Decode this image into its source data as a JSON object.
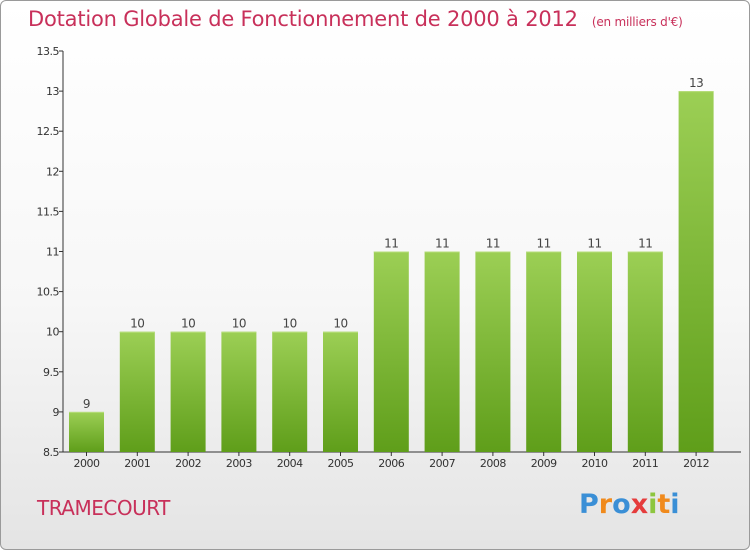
{
  "title": "Dotation Globale de Fonctionnement de 2000 à 2012",
  "subtitle": "(en milliers d'€)",
  "commune": "TRAMECOURT",
  "logo": {
    "text": "Proxiti",
    "letter_colors": [
      "#3a8fd6",
      "#f08a1c",
      "#3a8fd6",
      "#e53c3c",
      "#8dc63f",
      "#f08a1c",
      "#3a8fd6"
    ]
  },
  "colors": {
    "title": "#c8305a",
    "bar_top": "#9ccf55",
    "bar_bottom": "#5f9e1a",
    "axis": "#333333"
  },
  "chart_data": {
    "type": "bar",
    "categories": [
      "2000",
      "2001",
      "2002",
      "2003",
      "2004",
      "2005",
      "2006",
      "2007",
      "2008",
      "2009",
      "2010",
      "2011",
      "2012"
    ],
    "values": [
      9,
      10,
      10,
      10,
      10,
      10,
      11,
      11,
      11,
      11,
      11,
      11,
      13
    ],
    "data_labels": [
      "9",
      "10",
      "10",
      "10",
      "10",
      "10",
      "11",
      "11",
      "11",
      "11",
      "11",
      "11",
      "13"
    ],
    "yticks": [
      "8.5",
      "9",
      "9.5",
      "10",
      "10.5",
      "11",
      "11.5",
      "12",
      "12.5",
      "13",
      "13.5"
    ],
    "ylim": [
      8.5,
      13.5
    ],
    "grid": false,
    "legend": "none"
  }
}
